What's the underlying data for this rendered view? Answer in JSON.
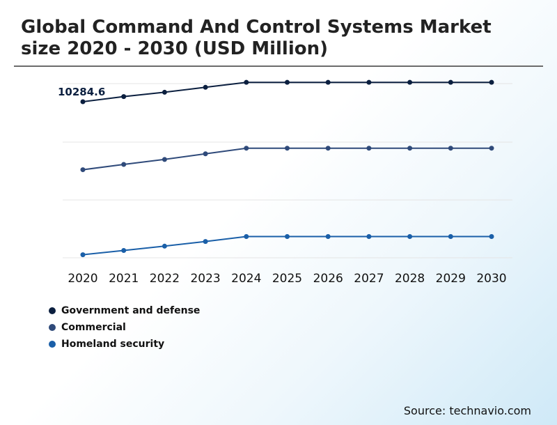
{
  "title": "Global Command And Control Systems Market size 2020 - 2030 (USD Million)",
  "source": "Source: technavio.com",
  "chart_data": {
    "type": "line",
    "categories": [
      "2020",
      "2021",
      "2022",
      "2023",
      "2024",
      "2025",
      "2026",
      "2027",
      "2028",
      "2029",
      "2030"
    ],
    "series": [
      {
        "name": "Government and defense",
        "color": "#0b1f3f",
        "values": [
          10284.6,
          10440,
          10570,
          10720,
          10870,
          10870,
          10870,
          10870,
          10870,
          10870,
          10870
        ]
      },
      {
        "name": "Commercial",
        "color": "#2f4a7a",
        "values": [
          8230,
          8390,
          8540,
          8710,
          8880,
          8880,
          8880,
          8880,
          8880,
          8880,
          8880
        ]
      },
      {
        "name": "Homeland security",
        "color": "#1a5fa8",
        "values": [
          5660,
          5790,
          5920,
          6060,
          6210,
          6210,
          6210,
          6210,
          6210,
          6210,
          6210
        ]
      }
    ],
    "annotations": [
      {
        "series": 0,
        "index": 0,
        "label": "10284.6"
      }
    ],
    "ylim": [
      5400,
      11000
    ],
    "grid": true,
    "legend_position": "bottom-left"
  }
}
